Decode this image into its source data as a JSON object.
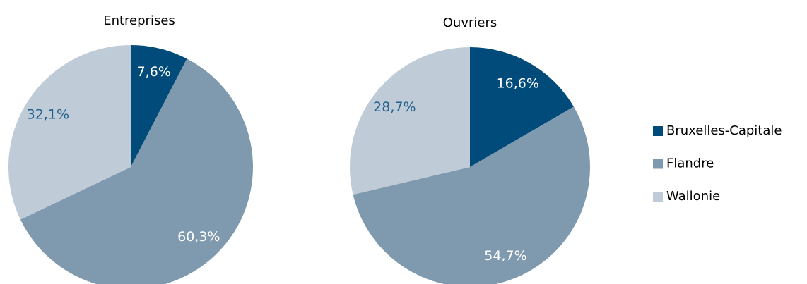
{
  "chart_data": [
    {
      "type": "pie",
      "title": "Entreprises",
      "categories": [
        "Bruxelles-Capitale",
        "Flandre",
        "Wallonie"
      ],
      "values": [
        7.6,
        60.3,
        32.1
      ],
      "value_labels": [
        "7,6%",
        "60,3%",
        "32,1%"
      ],
      "colors": [
        "#004b7a",
        "#7f9aae",
        "#bfccd8"
      ]
    },
    {
      "type": "pie",
      "title": "Ouvriers",
      "categories": [
        "Bruxelles-Capitale",
        "Flandre",
        "Wallonie"
      ],
      "values": [
        16.6,
        54.7,
        28.7
      ],
      "value_labels": [
        "16,6%",
        "54,7%",
        "28,7%"
      ],
      "colors": [
        "#004b7a",
        "#7f9aae",
        "#bfccd8"
      ]
    }
  ]
}
